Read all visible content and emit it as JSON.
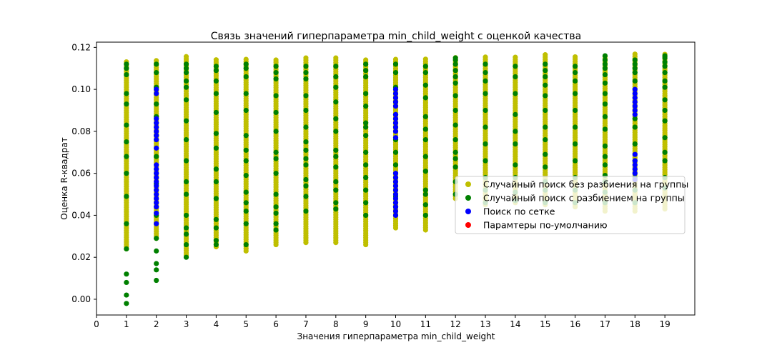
{
  "chart_data": {
    "type": "scatter",
    "title": "Связь значений гиперпараметра min_child_weight с оценкой качества",
    "xlabel": "Значения гиперпараметра min_child_weight",
    "ylabel": "Оценка R-квадрат",
    "xlim": [
      0,
      20
    ],
    "ylim": [
      -0.0075,
      0.1225
    ],
    "xticks": [
      0,
      1,
      2,
      3,
      4,
      5,
      6,
      7,
      8,
      9,
      10,
      11,
      12,
      13,
      14,
      15,
      16,
      17,
      18,
      19
    ],
    "yticks": [
      0.0,
      0.02,
      0.04,
      0.06,
      0.08,
      0.1,
      0.12
    ],
    "ytick_labels": [
      "0.00",
      "0.02",
      "0.04",
      "0.06",
      "0.08",
      "0.10",
      "0.12"
    ],
    "grid": false,
    "legend_position": "center-right",
    "series": [
      {
        "name": "Случайный поиск без разбиения на группы",
        "color": "#bfbf00",
        "ranges": [
          {
            "x": 1,
            "min": 0.024,
            "max": 0.114
          },
          {
            "x": 2,
            "min": 0.029,
            "max": 0.114
          },
          {
            "x": 3,
            "min": 0.021,
            "max": 0.116
          },
          {
            "x": 4,
            "min": 0.025,
            "max": 0.115
          },
          {
            "x": 5,
            "min": 0.023,
            "max": 0.115
          },
          {
            "x": 6,
            "min": 0.026,
            "max": 0.115
          },
          {
            "x": 7,
            "min": 0.027,
            "max": 0.115
          },
          {
            "x": 8,
            "min": 0.027,
            "max": 0.115
          },
          {
            "x": 9,
            "min": 0.026,
            "max": 0.115
          },
          {
            "x": 10,
            "min": 0.034,
            "max": 0.115
          },
          {
            "x": 11,
            "min": 0.033,
            "max": 0.115
          },
          {
            "x": 12,
            "min": 0.048,
            "max": 0.116
          },
          {
            "x": 13,
            "min": 0.045,
            "max": 0.116
          },
          {
            "x": 14,
            "min": 0.046,
            "max": 0.116
          },
          {
            "x": 15,
            "min": 0.045,
            "max": 0.117
          },
          {
            "x": 16,
            "min": 0.044,
            "max": 0.116
          },
          {
            "x": 17,
            "min": 0.042,
            "max": 0.116
          },
          {
            "x": 18,
            "min": 0.042,
            "max": 0.117
          },
          {
            "x": 19,
            "min": 0.043,
            "max": 0.117
          }
        ]
      },
      {
        "name": "Случайный поиск с разбиением на группы",
        "color": "#008000",
        "points": [
          {
            "x": 1,
            "y": [
              -0.002,
              0.002,
              0.008,
              0.012,
              0.024,
              0.036,
              0.049,
              0.06,
              0.068,
              0.075,
              0.083,
              0.093,
              0.098,
              0.107,
              0.11,
              0.112
            ]
          },
          {
            "x": 2,
            "y": [
              0.009,
              0.014,
              0.017,
              0.023,
              0.029,
              0.04,
              0.055,
              0.068,
              0.078,
              0.087,
              0.093,
              0.101,
              0.108,
              0.112
            ]
          },
          {
            "x": 3,
            "y": [
              0.02,
              0.026,
              0.031,
              0.034,
              0.04,
              0.05,
              0.056,
              0.066,
              0.076,
              0.085,
              0.095,
              0.101,
              0.104,
              0.108,
              0.11,
              0.112
            ]
          },
          {
            "x": 4,
            "y": [
              0.026,
              0.028,
              0.034,
              0.038,
              0.048,
              0.056,
              0.062,
              0.072,
              0.079,
              0.089,
              0.098,
              0.104,
              0.109,
              0.111
            ]
          },
          {
            "x": 5,
            "y": [
              0.026,
              0.036,
              0.042,
              0.046,
              0.051,
              0.059,
              0.066,
              0.071,
              0.078,
              0.09,
              0.098,
              0.106,
              0.11,
              0.112
            ]
          },
          {
            "x": 6,
            "y": [
              0.033,
              0.036,
              0.041,
              0.044,
              0.05,
              0.06,
              0.067,
              0.07,
              0.08,
              0.089,
              0.097,
              0.105,
              0.108,
              0.111
            ]
          },
          {
            "x": 7,
            "y": [
              0.042,
              0.049,
              0.054,
              0.057,
              0.064,
              0.067,
              0.071,
              0.075,
              0.082,
              0.09,
              0.097,
              0.105,
              0.108,
              0.111
            ]
          },
          {
            "x": 8,
            "y": [
              0.043,
              0.046,
              0.052,
              0.056,
              0.063,
              0.068,
              0.071,
              0.08,
              0.086,
              0.094,
              0.101,
              0.106,
              0.111
            ]
          },
          {
            "x": 9,
            "y": [
              0.04,
              0.046,
              0.052,
              0.058,
              0.064,
              0.07,
              0.078,
              0.082,
              0.084,
              0.092,
              0.098,
              0.106,
              0.109,
              0.112
            ]
          },
          {
            "x": 10,
            "y": [
              0.044,
              0.049,
              0.058,
              0.064,
              0.07,
              0.076,
              0.082,
              0.088,
              0.094,
              0.101,
              0.108,
              0.112
            ]
          },
          {
            "x": 11,
            "y": [
              0.04,
              0.045,
              0.05,
              0.052,
              0.061,
              0.068,
              0.076,
              0.081,
              0.087,
              0.096,
              0.102,
              0.108,
              0.111
            ]
          },
          {
            "x": 12,
            "y": [
              0.05,
              0.056,
              0.063,
              0.067,
              0.07,
              0.076,
              0.083,
              0.09,
              0.097,
              0.103,
              0.106,
              0.109,
              0.112,
              0.114,
              0.115
            ]
          },
          {
            "x": 13,
            "y": [
              0.046,
              0.052,
              0.058,
              0.066,
              0.074,
              0.082,
              0.09,
              0.098,
              0.104,
              0.108,
              0.112
            ]
          },
          {
            "x": 14,
            "y": [
              0.047,
              0.051,
              0.058,
              0.064,
              0.074,
              0.08,
              0.088,
              0.098,
              0.106,
              0.111
            ]
          },
          {
            "x": 15,
            "y": [
              0.046,
              0.052,
              0.056,
              0.063,
              0.069,
              0.076,
              0.082,
              0.09,
              0.097,
              0.102,
              0.106,
              0.109,
              0.112
            ]
          },
          {
            "x": 16,
            "y": [
              0.046,
              0.052,
              0.058,
              0.066,
              0.074,
              0.082,
              0.09,
              0.098,
              0.104,
              0.108,
              0.111
            ]
          },
          {
            "x": 17,
            "y": [
              0.046,
              0.051,
              0.056,
              0.059,
              0.064,
              0.068,
              0.073,
              0.081,
              0.087,
              0.093,
              0.098,
              0.103,
              0.107,
              0.11,
              0.112,
              0.114,
              0.116
            ]
          },
          {
            "x": 18,
            "y": [
              0.046,
              0.052,
              0.058,
              0.066,
              0.074,
              0.082,
              0.086,
              0.104,
              0.108,
              0.11,
              0.112,
              0.114
            ]
          },
          {
            "x": 19,
            "y": [
              0.053,
              0.058,
              0.066,
              0.07,
              0.077,
              0.085,
              0.09,
              0.095,
              0.101,
              0.104,
              0.108,
              0.111,
              0.113,
              0.115,
              0.116
            ]
          }
        ]
      },
      {
        "name": "Поиск по сетке",
        "color": "#0000ff",
        "points": [
          {
            "x": 2,
            "y": [
              0.036,
              0.041,
              0.044,
              0.046,
              0.048,
              0.05,
              0.052,
              0.054,
              0.056,
              0.058,
              0.06,
              0.062,
              0.064,
              0.072,
              0.076,
              0.078,
              0.08,
              0.082,
              0.084,
              0.086,
              0.098,
              0.1
            ]
          },
          {
            "x": 10,
            "y": [
              0.04,
              0.042,
              0.044,
              0.046,
              0.048,
              0.05,
              0.052,
              0.054,
              0.056,
              0.058,
              0.06,
              0.077,
              0.08,
              0.082,
              0.084,
              0.086,
              0.088,
              0.092,
              0.094,
              0.096,
              0.098,
              0.1
            ]
          },
          {
            "x": 18,
            "y": [
              0.057,
              0.06,
              0.062,
              0.064,
              0.066,
              0.069,
              0.088,
              0.09,
              0.092,
              0.094,
              0.096,
              0.098,
              0.1
            ]
          }
        ]
      },
      {
        "name": "Парамтеры по-умолчанию",
        "color": "#ff0000",
        "points": []
      }
    ]
  }
}
